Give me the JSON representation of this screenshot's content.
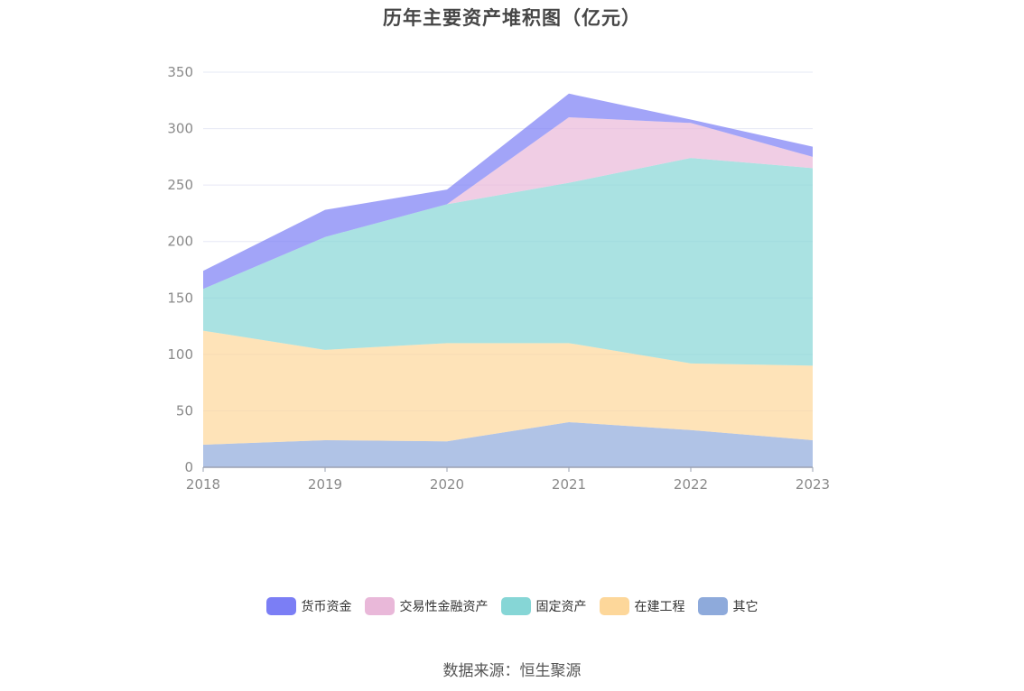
{
  "title": "历年主要资产堆积图（亿元）",
  "source": "数据来源：恒生聚源",
  "colors": {
    "grid": "#e6e8f5",
    "axis": "#9aa0b2",
    "tick_text": "#8a8a8a"
  },
  "chart_data": {
    "type": "area",
    "stacked": true,
    "title": "历年主要资产堆积图（亿元）",
    "xlabel": "",
    "ylabel": "",
    "categories": [
      "2018",
      "2019",
      "2020",
      "2021",
      "2022",
      "2023"
    ],
    "ylim": [
      0,
      350
    ],
    "yticks": [
      0,
      50,
      100,
      150,
      200,
      250,
      300,
      350
    ],
    "grid": true,
    "legend_position": "bottom-center",
    "series": [
      {
        "name": "其它",
        "color": "#8eaadb",
        "values": [
          20,
          24,
          23,
          40,
          33,
          24
        ]
      },
      {
        "name": "在建工程",
        "color": "#fdd79a",
        "values": [
          101,
          80,
          87,
          70,
          59,
          66
        ]
      },
      {
        "name": "固定资产",
        "color": "#86d6d6",
        "values": [
          37,
          100,
          123,
          142,
          182,
          175
        ]
      },
      {
        "name": "交易性金融资产",
        "color": "#e9b8d9",
        "values": [
          0,
          0,
          0,
          58,
          31,
          10
        ]
      },
      {
        "name": "货币资金",
        "color": "#7b7ef5",
        "values": [
          16,
          24,
          13,
          21,
          3,
          9
        ]
      }
    ]
  },
  "legend_order": [
    "货币资金",
    "交易性金融资产",
    "固定资产",
    "在建工程",
    "其它"
  ]
}
